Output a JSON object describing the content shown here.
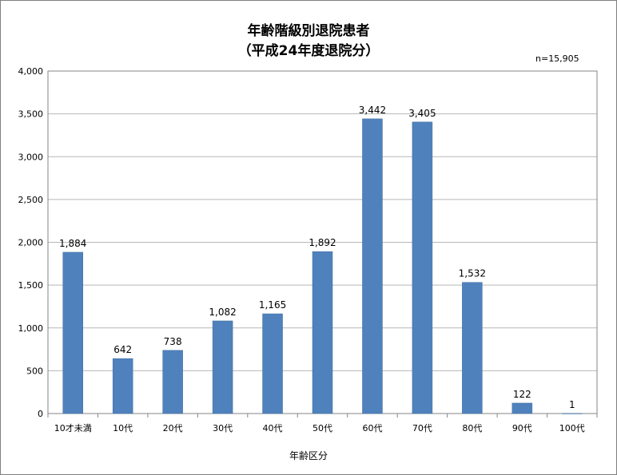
{
  "chart_data": {
    "type": "bar",
    "title": "年齢階級別退院患者",
    "subtitle": "（平成24年度退院分）",
    "note": "n=15,905",
    "xlabel": "年齢区分",
    "ylabel": "",
    "categories": [
      "10才未満",
      "10代",
      "20代",
      "30代",
      "40代",
      "50代",
      "60代",
      "70代",
      "80代",
      "90代",
      "100代"
    ],
    "values": [
      1884,
      642,
      738,
      1082,
      1165,
      1892,
      3442,
      3405,
      1532,
      122,
      1
    ],
    "value_labels": [
      "1,884",
      "642",
      "738",
      "1,082",
      "1,165",
      "1,892",
      "3,442",
      "3,405",
      "1,532",
      "122",
      "1"
    ],
    "ylim": [
      0,
      4000
    ],
    "yticks": [
      0,
      500,
      1000,
      1500,
      2000,
      2500,
      3000,
      3500,
      4000
    ],
    "ytick_labels": [
      "0",
      "500",
      "1,000",
      "1,500",
      "2,000",
      "2,500",
      "3,000",
      "3,500",
      "4,000"
    ],
    "grid": true,
    "legend": "none",
    "bar_color": "#4f81bd"
  }
}
